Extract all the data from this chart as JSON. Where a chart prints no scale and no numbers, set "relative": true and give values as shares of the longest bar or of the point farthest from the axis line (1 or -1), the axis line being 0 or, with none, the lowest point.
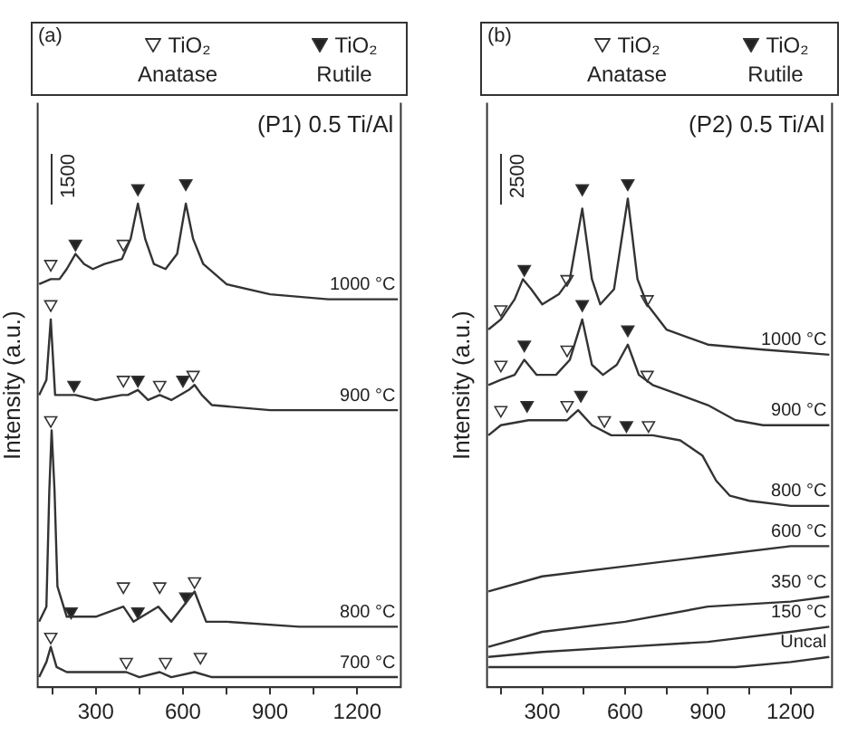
{
  "chart_data": [
    {
      "type": "line",
      "title": "(P1) 0.5 Ti/Al",
      "subtitle": "(a)",
      "ylabel": "Intensity (a.u.)",
      "relative": true,
      "xlim": [
        100,
        1350
      ],
      "xticks": [
        {
          "value": 150,
          "label": null
        },
        300,
        {
          "value": 450,
          "label": null
        },
        600,
        {
          "value": 750,
          "label": null
        },
        900,
        {
          "value": 1050,
          "label": null
        },
        1200
      ],
      "annotations": [
        "1500"
      ],
      "legend": "top",
      "marker": "none",
      "line_style": "solid",
      "series": [
        {
          "name": "1000 °C",
          "color": "#333333",
          "x": [
            105,
            145,
            175,
            200,
            230,
            260,
            290,
            330,
            390,
            420,
            445,
            470,
            500,
            540,
            580,
            610,
            635,
            670,
            750,
            900,
            1100,
            1340
          ],
          "values": [
            0.8,
            0.81,
            0.81,
            0.83,
            0.86,
            0.84,
            0.83,
            0.84,
            0.85,
            0.89,
            0.96,
            0.89,
            0.84,
            0.83,
            0.86,
            0.96,
            0.89,
            0.84,
            0.8,
            0.78,
            0.77,
            0.77
          ]
        },
        {
          "name": "900 °C",
          "color": "#333333",
          "x": [
            105,
            130,
            145,
            160,
            230,
            300,
            390,
            410,
            445,
            480,
            520,
            560,
            620,
            640,
            665,
            700,
            900,
            1340
          ],
          "values": [
            0.58,
            0.61,
            0.73,
            0.58,
            0.58,
            0.57,
            0.58,
            0.58,
            0.59,
            0.57,
            0.58,
            0.57,
            0.59,
            0.6,
            0.58,
            0.56,
            0.55,
            0.55
          ]
        },
        {
          "name": "800 °C",
          "color": "#333333",
          "x": [
            105,
            130,
            140,
            148,
            158,
            168,
            200,
            300,
            395,
            430,
            515,
            560,
            640,
            680,
            750,
            1000,
            1340
          ],
          "values": [
            0.13,
            0.16,
            0.39,
            0.51,
            0.39,
            0.2,
            0.14,
            0.14,
            0.16,
            0.13,
            0.16,
            0.13,
            0.19,
            0.13,
            0.13,
            0.12,
            0.12
          ]
        },
        {
          "name": "700 °C",
          "color": "#333333",
          "x": [
            105,
            130,
            145,
            165,
            200,
            405,
            450,
            520,
            560,
            640,
            700,
            1340
          ],
          "values": [
            0.02,
            0.05,
            0.08,
            0.04,
            0.03,
            0.03,
            0.02,
            0.03,
            0.02,
            0.03,
            0.02,
            0.02
          ]
        },
        {
          "name": "TiO₂ Anatase",
          "type": "scatter",
          "marker": "triangle",
          "color": "#ffffff",
          "x": [
            145,
            395,
            145,
            395,
            520,
            635,
            145,
            395,
            520,
            640,
            145,
            405,
            540,
            660
          ],
          "values": [
            0.84,
            0.88,
            0.76,
            0.61,
            0.6,
            0.62,
            0.53,
            0.2,
            0.2,
            0.21,
            0.1,
            0.05,
            0.05,
            0.06
          ]
        },
        {
          "name": "TiO₂ Rutile",
          "type": "scatter",
          "marker": "triangle",
          "color": "#222222",
          "x": [
            230,
            445,
            610,
            225,
            445,
            600,
            215,
            445,
            610
          ],
          "values": [
            0.88,
            0.99,
            1.0,
            0.6,
            0.61,
            0.61,
            0.15,
            0.15,
            0.18
          ]
        }
      ]
    },
    {
      "type": "line",
      "title": "(P2) 0.5 Ti/Al",
      "subtitle": "(b)",
      "ylabel": "Intensity (a.u.)",
      "relative": true,
      "xlim": [
        100,
        1350
      ],
      "xticks": [
        {
          "value": 150,
          "label": null
        },
        300,
        {
          "value": 450,
          "label": null
        },
        600,
        {
          "value": 750,
          "label": null
        },
        900,
        {
          "value": 1050,
          "label": null
        },
        1200
      ],
      "annotations": [
        "2500"
      ],
      "legend": "top",
      "marker": "none",
      "line_style": "solid",
      "series": [
        {
          "name": "1000 °C",
          "color": "#333333",
          "x": [
            105,
            150,
            200,
            230,
            260,
            300,
            360,
            400,
            445,
            480,
            510,
            560,
            610,
            645,
            680,
            750,
            900,
            1100,
            1340
          ],
          "values": [
            0.71,
            0.73,
            0.77,
            0.81,
            0.79,
            0.76,
            0.78,
            0.81,
            0.95,
            0.81,
            0.76,
            0.79,
            0.97,
            0.81,
            0.76,
            0.71,
            0.68,
            0.67,
            0.66
          ]
        },
        {
          "name": "900 °C",
          "color": "#333333",
          "x": [
            105,
            150,
            200,
            235,
            280,
            350,
            400,
            445,
            480,
            520,
            570,
            610,
            650,
            700,
            800,
            900,
            1000,
            1100,
            1340
          ],
          "values": [
            0.6,
            0.61,
            0.62,
            0.65,
            0.62,
            0.62,
            0.65,
            0.73,
            0.64,
            0.62,
            0.64,
            0.68,
            0.62,
            0.6,
            0.58,
            0.56,
            0.53,
            0.52,
            0.52
          ]
        },
        {
          "name": "800 °C",
          "color": "#333333",
          "x": [
            105,
            150,
            250,
            350,
            390,
            430,
            480,
            550,
            620,
            700,
            800,
            880,
            930,
            980,
            1050,
            1200,
            1340
          ],
          "values": [
            0.5,
            0.52,
            0.53,
            0.53,
            0.53,
            0.55,
            0.52,
            0.5,
            0.5,
            0.5,
            0.49,
            0.46,
            0.41,
            0.38,
            0.37,
            0.36,
            0.36
          ]
        },
        {
          "name": "600 °C",
          "color": "#333333",
          "x": [
            105,
            300,
            600,
            900,
            1200,
            1340
          ],
          "values": [
            0.19,
            0.22,
            0.24,
            0.26,
            0.28,
            0.28
          ]
        },
        {
          "name": "350 °C",
          "color": "#333333",
          "x": [
            105,
            300,
            600,
            900,
            1200,
            1340
          ],
          "values": [
            0.08,
            0.11,
            0.13,
            0.16,
            0.17,
            0.18
          ]
        },
        {
          "name": "150 °C",
          "color": "#333333",
          "x": [
            105,
            300,
            600,
            900,
            1200,
            1340
          ],
          "values": [
            0.06,
            0.07,
            0.08,
            0.09,
            0.11,
            0.12
          ]
        },
        {
          "name": "Uncal",
          "color": "#333333",
          "x": [
            105,
            600,
            1000,
            1200,
            1340
          ],
          "values": [
            0.04,
            0.04,
            0.04,
            0.05,
            0.06
          ]
        },
        {
          "name": "TiO₂ Anatase",
          "type": "scatter",
          "marker": "triangle",
          "color": "#ffffff",
          "x": [
            150,
            390,
            680,
            150,
            390,
            680,
            150,
            390,
            525,
            685
          ],
          "values": [
            0.75,
            0.81,
            0.77,
            0.64,
            0.67,
            0.62,
            0.55,
            0.56,
            0.53,
            0.52
          ]
        },
        {
          "name": "TiO₂ Rutile",
          "type": "scatter",
          "marker": "triangle",
          "color": "#222222",
          "x": [
            235,
            445,
            610,
            235,
            445,
            610,
            245,
            440,
            605
          ],
          "values": [
            0.83,
            0.99,
            1.0,
            0.68,
            0.76,
            0.71,
            0.56,
            0.58,
            0.52
          ]
        }
      ]
    }
  ]
}
